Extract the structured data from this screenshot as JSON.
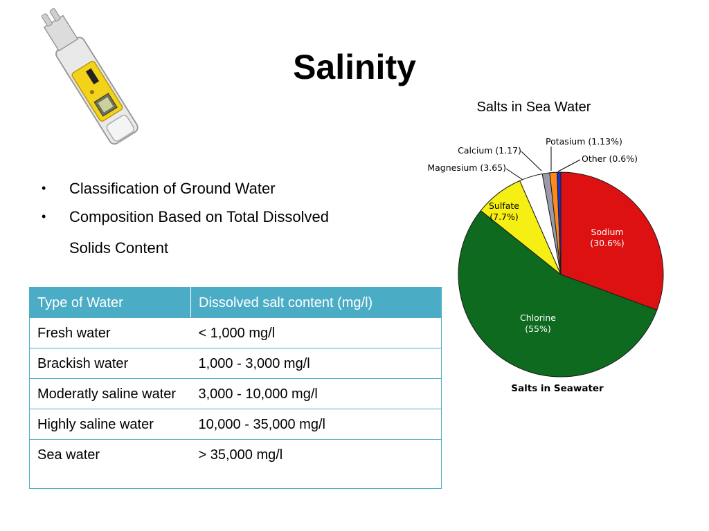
{
  "slide": {
    "title": "Salinity",
    "bullets": [
      "Classification of Ground Water",
      "Composition Based on Total Dissolved",
      "Solids Content"
    ]
  },
  "table": {
    "headers": [
      "Type of Water",
      "Dissolved salt content (mg/l)"
    ],
    "rows": [
      [
        "Fresh water",
        "< 1,000 mg/l"
      ],
      [
        "Brackish water",
        "1,000 - 3,000 mg/l"
      ],
      [
        "Moderatly saline water",
        "3,000 - 10,000 mg/l"
      ],
      [
        "Highly saline water",
        "10,000 - 35,000 mg/l"
      ],
      [
        "Sea water",
        "> 35,000 mg/l"
      ]
    ]
  },
  "chart_caption": "Salts in Sea Water",
  "meter_image": {
    "brand_text": "",
    "icon": "salinity-meter-pen"
  },
  "chart_data": {
    "type": "pie",
    "title": "Salts in Seawater",
    "start": "12 o'clock, clockwise",
    "slices": [
      {
        "name": "Sodium",
        "value": 30.6,
        "label": "Sodium",
        "label2": "(30.6%)",
        "color": "#dd1111"
      },
      {
        "name": "Chlorine",
        "value": 55,
        "label": "Chlorine",
        "label2": "(55%)",
        "color": "#0d6a1f"
      },
      {
        "name": "Sulfate",
        "value": 7.7,
        "label": "Sulfate",
        "label2": "(7.7%)",
        "color": "#f5ef14"
      },
      {
        "name": "Magnesium",
        "value": 3.65,
        "label": "Magnesium (3.65)",
        "label2": "",
        "color": "#ffffff"
      },
      {
        "name": "Calcium",
        "value": 1.17,
        "label": "Calcium (1.17)",
        "label2": "",
        "color": "#9a9aaa"
      },
      {
        "name": "Potasium",
        "value": 1.13,
        "label": "Potasium (1.13%)",
        "label2": "",
        "color": "#ff8a1a"
      },
      {
        "name": "Other",
        "value": 0.6,
        "label": "Other (0.6%)",
        "label2": "",
        "color": "#1030d0"
      }
    ]
  }
}
